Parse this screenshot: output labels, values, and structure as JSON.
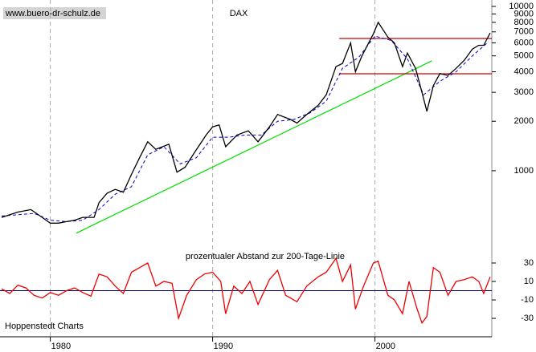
{
  "watermark": "www.buero-dr-schulz.de",
  "footer": "Hoppenstedt Charts",
  "chart_data": [
    {
      "type": "line",
      "title": "DAX",
      "log_scale": true,
      "xlim": [
        1976.9,
        2007.2
      ],
      "xticks": [
        1980,
        1990,
        2000
      ],
      "ylim": [
        336,
        10940
      ],
      "yticks": [
        10000,
        9000,
        8000,
        7000,
        6000,
        5000,
        4000,
        3000,
        2000,
        1000
      ],
      "series": [
        {
          "name": "DAX",
          "color": "#000000",
          "x": [
            1977.0,
            1978.0,
            1978.8,
            1979.5,
            1980.0,
            1980.5,
            1981.0,
            1981.5,
            1982.0,
            1982.7,
            1983.0,
            1983.5,
            1984.0,
            1984.5,
            1985.0,
            1985.5,
            1986.0,
            1986.5,
            1987.3,
            1987.8,
            1988.3,
            1988.9,
            1989.6,
            1990.0,
            1990.4,
            1990.8,
            1991.5,
            1992.2,
            1992.8,
            1993.5,
            1994.0,
            1994.8,
            1995.2,
            1995.8,
            1996.5,
            1997.0,
            1997.6,
            1998.0,
            1998.5,
            1998.8,
            1999.2,
            1999.9,
            2000.2,
            2000.8,
            2001.2,
            2001.7,
            2002.0,
            2002.5,
            2002.9,
            2003.2,
            2003.6,
            2004.0,
            2004.5,
            2005.0,
            2005.5,
            2006.0,
            2006.4,
            2006.7,
            2007.1
          ],
          "values": [
            520,
            560,
            580,
            520,
            480,
            480,
            490,
            500,
            520,
            520,
            640,
            730,
            770,
            740,
            950,
            1200,
            1500,
            1350,
            1450,
            980,
            1050,
            1300,
            1650,
            1850,
            1900,
            1400,
            1650,
            1750,
            1500,
            1850,
            2200,
            2050,
            1950,
            2200,
            2500,
            2900,
            4300,
            4500,
            6000,
            4000,
            5000,
            6800,
            8000,
            6500,
            6000,
            4300,
            5200,
            4200,
            3000,
            2300,
            3300,
            3900,
            3800,
            4200,
            4700,
            5500,
            5800,
            5800,
            6900
          ]
        },
        {
          "name": "200-Tage-Linie",
          "color": "#0000cc",
          "x": [
            1977,
            1978,
            1979,
            1980,
            1981,
            1982,
            1983,
            1984,
            1985,
            1986,
            1987,
            1988,
            1989,
            1990,
            1991,
            1992,
            1993,
            1994,
            1995,
            1996,
            1997,
            1998,
            1999,
            2000,
            2001,
            2002,
            2003,
            2004,
            2005,
            2006,
            2007
          ],
          "values": [
            530,
            540,
            550,
            500,
            490,
            500,
            580,
            720,
            800,
            1250,
            1400,
            1100,
            1200,
            1600,
            1600,
            1650,
            1650,
            2000,
            2050,
            2250,
            2650,
            4200,
            4900,
            6600,
            6200,
            4800,
            2900,
            3500,
            4000,
            5000,
            6100
          ]
        }
      ],
      "reference_lines": [
        {
          "y": 6380,
          "x": [
            1997.8,
            2007.2
          ],
          "color": "#cc0000"
        },
        {
          "y": 3890,
          "x": [
            1997.8,
            2007.2
          ],
          "color": "#cc0000"
        }
      ],
      "trend_lines": [
        {
          "x": [
            1981.6,
            2003.5
          ],
          "y": [
            417,
            4660
          ],
          "color": "#00dd00"
        }
      ]
    },
    {
      "type": "line",
      "title": "prozentualer Abstand zur 200-Tage-Linie",
      "xlim": [
        1976.9,
        2007.2
      ],
      "ylim": [
        -45.6,
        41.3
      ],
      "yticks": [
        30,
        10,
        -10,
        -30
      ],
      "zero_line_color": "#000066",
      "series": [
        {
          "name": "Abstand",
          "color": "#ee0000",
          "x": [
            1977,
            1977.5,
            1978,
            1978.5,
            1979,
            1979.5,
            1980,
            1980.5,
            1981,
            1981.5,
            1982,
            1982.5,
            1983,
            1983.5,
            1984,
            1984.5,
            1985,
            1985.5,
            1986,
            1986.5,
            1987,
            1987.5,
            1987.9,
            1988.4,
            1989,
            1989.5,
            1990,
            1990.5,
            1990.8,
            1991.3,
            1991.8,
            1992.3,
            1992.8,
            1993.5,
            1994,
            1994.5,
            1995.2,
            1995.8,
            1996.5,
            1997,
            1997.6,
            1998,
            1998.5,
            1998.8,
            1999.3,
            1999.9,
            2000.2,
            2000.8,
            2001.2,
            2001.7,
            2002.1,
            2002.6,
            2002.9,
            2003.2,
            2003.6,
            2004,
            2004.5,
            2005,
            2005.5,
            2006,
            2006.4,
            2006.7,
            2007.1
          ],
          "values": [
            2,
            -3,
            6,
            3,
            -5,
            -8,
            -2,
            -5,
            0,
            3,
            -2,
            -6,
            18,
            15,
            5,
            -3,
            20,
            25,
            30,
            5,
            10,
            8,
            -30,
            -5,
            12,
            18,
            20,
            10,
            -25,
            5,
            -3,
            10,
            -15,
            12,
            22,
            -5,
            -12,
            5,
            15,
            20,
            35,
            10,
            28,
            -20,
            5,
            30,
            32,
            -5,
            -10,
            -25,
            10,
            -20,
            -35,
            -28,
            25,
            20,
            -5,
            10,
            12,
            15,
            10,
            -3,
            15
          ]
        }
      ]
    }
  ]
}
